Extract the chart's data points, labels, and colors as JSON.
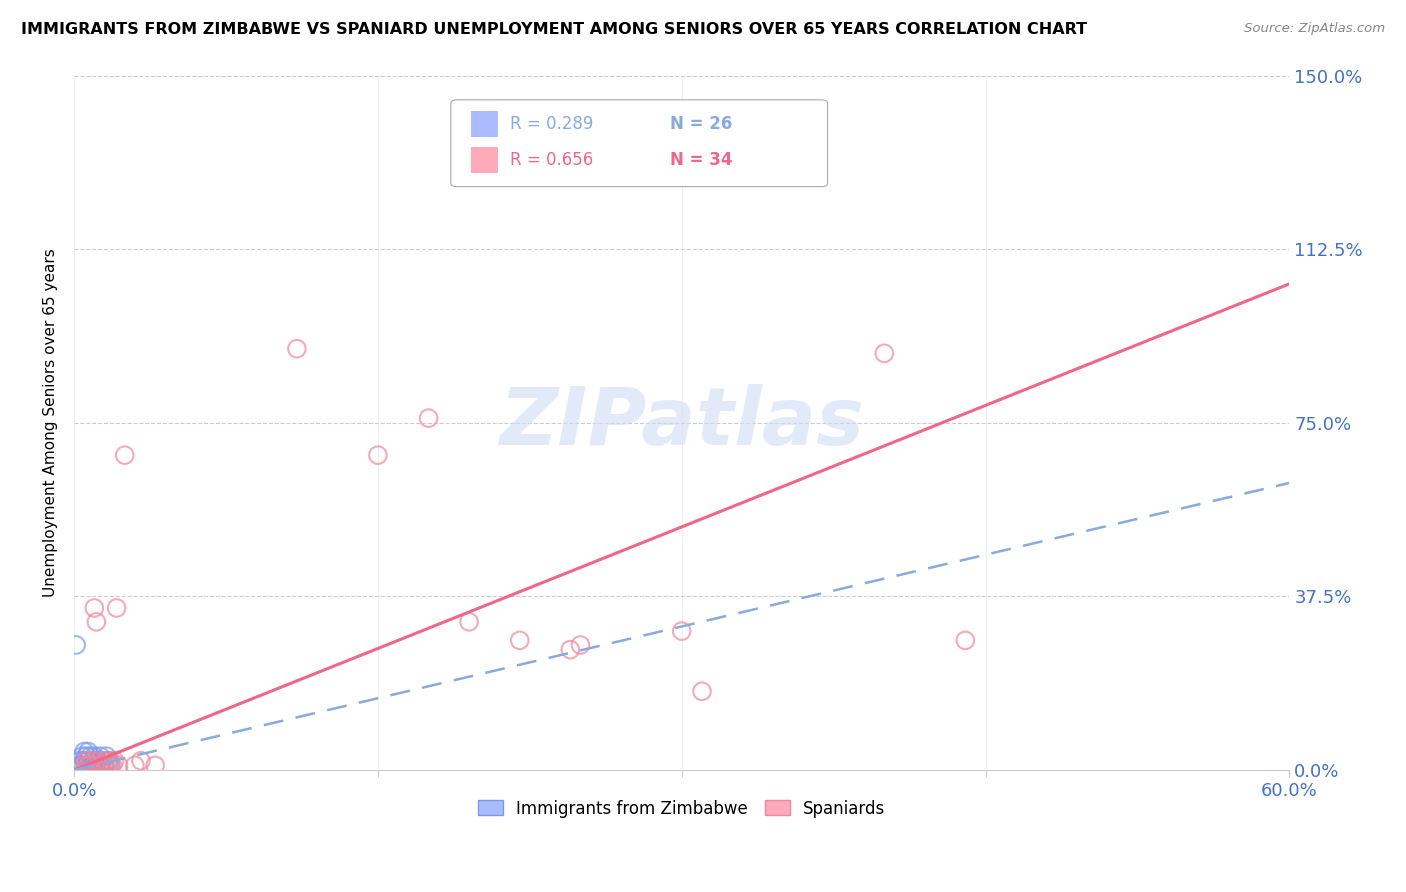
{
  "title": "IMMIGRANTS FROM ZIMBABWE VS SPANIARD UNEMPLOYMENT AMONG SENIORS OVER 65 YEARS CORRELATION CHART",
  "source": "Source: ZipAtlas.com",
  "tick_color": "#4472c4",
  "ylabel": "Unemployment Among Seniors over 65 years",
  "xlim": [
    0.0,
    0.6
  ],
  "ylim": [
    0.0,
    1.5
  ],
  "x_ticks": [
    0.0,
    0.15,
    0.3,
    0.45,
    0.6
  ],
  "x_tick_labels": [
    "0.0%",
    "",
    "",
    "",
    "60.0%"
  ],
  "y_ticks": [
    0.0,
    0.375,
    0.75,
    1.125,
    1.5
  ],
  "y_tick_labels_right": [
    "0.0%",
    "37.5%",
    "75.0%",
    "112.5%",
    "150.0%"
  ],
  "blue_color": "#aabbff",
  "pink_color": "#ffaabb",
  "blue_edge_color": "#7799ee",
  "pink_edge_color": "#ee8899",
  "blue_line_color": "#88aadd",
  "pink_line_color": "#ee6688",
  "watermark_text": "ZIPatlas",
  "legend_label1": "Immigrants from Zimbabwe",
  "legend_label2": "Spaniards",
  "legend_r1": "R = 0.289",
  "legend_n1": "N = 26",
  "legend_r2": "R = 0.656",
  "legend_n2": "N = 34",
  "zimbabwe_points": [
    [
      0.001,
      0.27
    ],
    [
      0.002,
      0.01
    ],
    [
      0.003,
      0.02
    ],
    [
      0.004,
      0.01
    ],
    [
      0.004,
      0.03
    ],
    [
      0.005,
      0.02
    ],
    [
      0.005,
      0.04
    ],
    [
      0.006,
      0.01
    ],
    [
      0.006,
      0.03
    ],
    [
      0.007,
      0.02
    ],
    [
      0.007,
      0.04
    ],
    [
      0.008,
      0.01
    ],
    [
      0.008,
      0.03
    ],
    [
      0.009,
      0.02
    ],
    [
      0.009,
      0.01
    ],
    [
      0.01,
      0.02
    ],
    [
      0.01,
      0.03
    ],
    [
      0.011,
      0.01
    ],
    [
      0.012,
      0.02
    ],
    [
      0.013,
      0.01
    ],
    [
      0.013,
      0.03
    ],
    [
      0.014,
      0.02
    ],
    [
      0.015,
      0.01
    ],
    [
      0.016,
      0.03
    ],
    [
      0.017,
      0.02
    ],
    [
      0.018,
      0.01
    ]
  ],
  "spaniard_points": [
    [
      0.005,
      0.01
    ],
    [
      0.006,
      0.02
    ],
    [
      0.007,
      0.01
    ],
    [
      0.008,
      0.01
    ],
    [
      0.009,
      0.02
    ],
    [
      0.01,
      0.01
    ],
    [
      0.01,
      0.35
    ],
    [
      0.011,
      0.32
    ],
    [
      0.012,
      0.02
    ],
    [
      0.013,
      0.01
    ],
    [
      0.014,
      0.01
    ],
    [
      0.015,
      0.01
    ],
    [
      0.016,
      0.02
    ],
    [
      0.017,
      0.01
    ],
    [
      0.018,
      0.02
    ],
    [
      0.019,
      0.01
    ],
    [
      0.02,
      0.02
    ],
    [
      0.021,
      0.35
    ],
    [
      0.022,
      0.01
    ],
    [
      0.025,
      0.68
    ],
    [
      0.03,
      0.01
    ],
    [
      0.033,
      0.02
    ],
    [
      0.04,
      0.01
    ],
    [
      0.11,
      0.91
    ],
    [
      0.15,
      0.68
    ],
    [
      0.175,
      0.76
    ],
    [
      0.195,
      0.32
    ],
    [
      0.22,
      0.28
    ],
    [
      0.245,
      0.26
    ],
    [
      0.25,
      0.27
    ],
    [
      0.3,
      0.3
    ],
    [
      0.31,
      0.17
    ],
    [
      0.4,
      0.9
    ],
    [
      0.44,
      0.28
    ]
  ],
  "pink_trend": [
    0.0,
    0.0,
    0.6,
    1.05
  ],
  "blue_trend": [
    0.0,
    0.0,
    0.6,
    0.62
  ]
}
